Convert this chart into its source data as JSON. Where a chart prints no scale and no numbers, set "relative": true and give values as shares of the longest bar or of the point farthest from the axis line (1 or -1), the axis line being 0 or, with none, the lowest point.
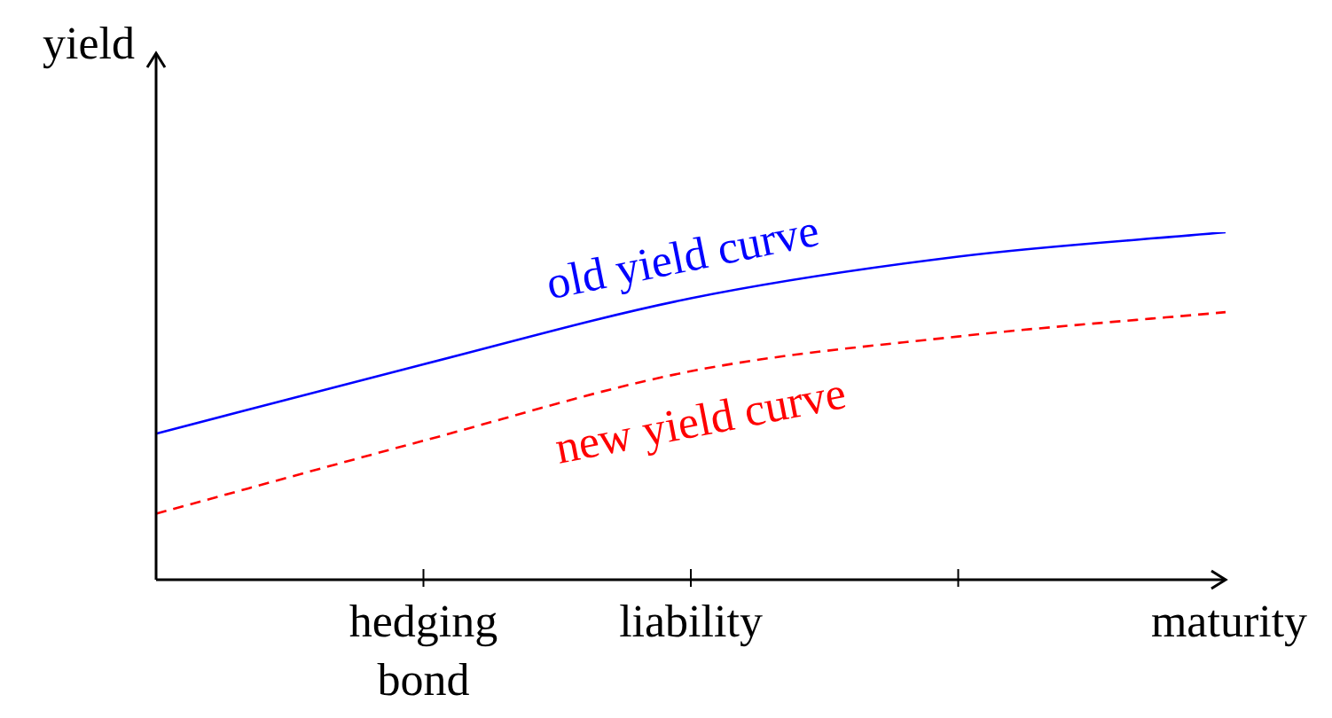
{
  "chart_data": {
    "type": "line",
    "relative": true,
    "xlabel": "maturity",
    "ylabel": "yield",
    "legend": false,
    "marker": "none",
    "categories": [
      null,
      "hedging bond",
      "liability",
      null,
      null
    ],
    "series": [
      {
        "name": "old yield curve",
        "color": "#0000ff",
        "line_style": "solid",
        "values": [
          0.42,
          0.62,
          0.81,
          0.93,
          1
        ]
      },
      {
        "name": "new yield curve",
        "color": "#ff0000",
        "line_style": "dashed",
        "values": [
          0.19,
          0.4,
          0.6,
          0.7,
          0.77
        ]
      }
    ]
  }
}
